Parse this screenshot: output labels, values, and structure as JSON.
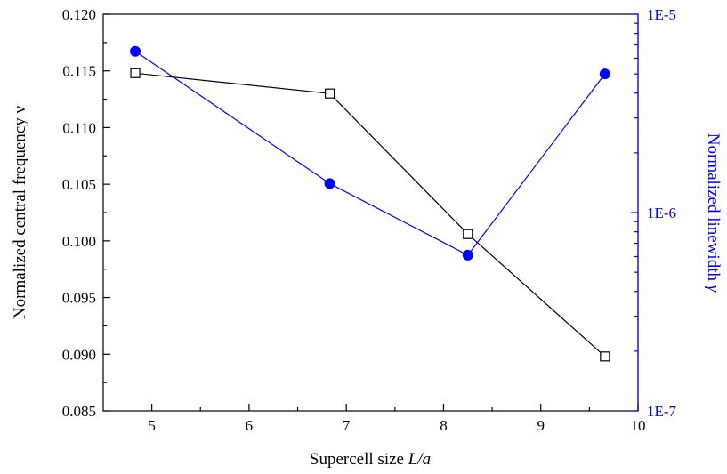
{
  "chart_data": {
    "type": "line",
    "title": "",
    "xlabel": {
      "text": "Supercell size ",
      "italic": "L/a"
    },
    "ylabel_left": {
      "text": "Normalized central frequency  ",
      "symbol": "ν"
    },
    "ylabel_right": {
      "text": "Normalized linewidth ",
      "symbol": "γ"
    },
    "xlim": [
      4.5,
      10
    ],
    "ylim_left": [
      0.085,
      0.12
    ],
    "ylim_right": [
      1e-07,
      1e-05
    ],
    "right_scale": "log",
    "x_ticks": [
      "5",
      "6",
      "7",
      "8",
      "9",
      "10"
    ],
    "y_left_ticks": [
      "0.085",
      "0.090",
      "0.095",
      "0.100",
      "0.105",
      "0.110",
      "0.115",
      "0.120"
    ],
    "y_right_ticks": [
      "1E-7",
      "1E-6",
      "1E-5"
    ],
    "colors": {
      "frequency": "#000000",
      "linewidth": "#0000ff",
      "right_axis": "#0000ff"
    },
    "series": [
      {
        "axis": "left",
        "marker": "open-square",
        "x": [
          4.83,
          6.83,
          8.25,
          9.66
        ],
        "y": [
          0.1148,
          0.113,
          0.1006,
          0.0898
        ]
      },
      {
        "axis": "right",
        "marker": "filled-circle",
        "x": [
          4.83,
          6.83,
          8.25,
          9.66
        ],
        "y": [
          6.5e-06,
          1.4e-06,
          6.1e-07,
          5e-06
        ]
      }
    ]
  }
}
